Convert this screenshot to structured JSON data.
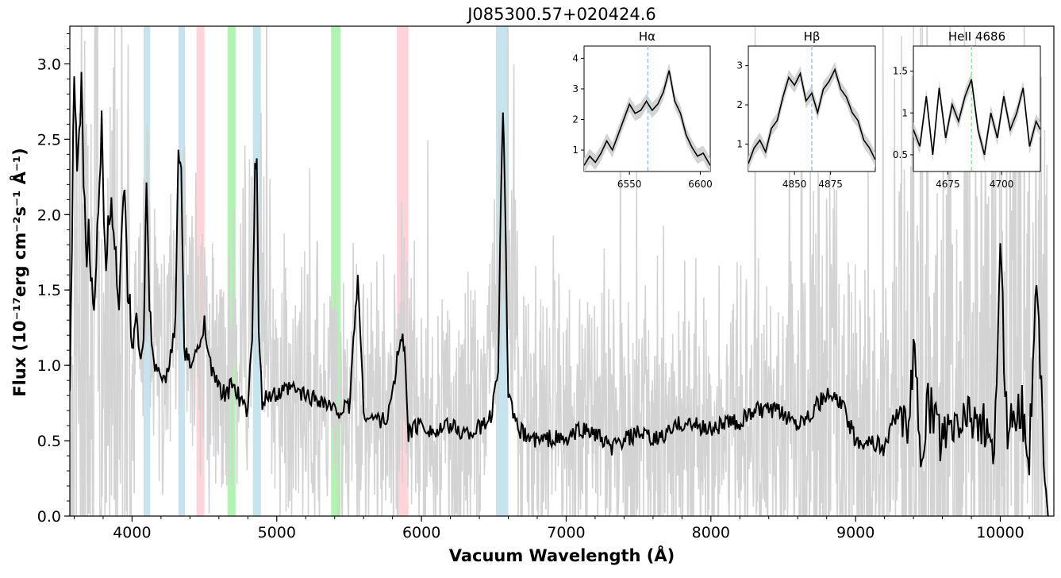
{
  "chart_data": [
    {
      "type": "line",
      "title": "J085300.57+020424.6",
      "xlabel": "Vacuum Wavelength (Å)",
      "ylabel": "Flux (10⁻¹⁷erg cm⁻²s⁻¹ Å⁻¹)",
      "xlim": [
        3570,
        10370
      ],
      "ylim": [
        0.0,
        3.25
      ],
      "x_ticks": [
        4000,
        5000,
        6000,
        7000,
        8000,
        9000,
        10000
      ],
      "y_ticks": [
        0.0,
        0.5,
        1.0,
        1.5,
        2.0,
        2.5,
        3.0
      ],
      "series": [
        {
          "role": "raw spectrum",
          "color": "#d3d3d3",
          "x": [
            3570,
            3700,
            3850,
            4000,
            4100,
            4200,
            4340,
            4500,
            4700,
            4862,
            5000,
            5200,
            5400,
            5600,
            5800,
            5890,
            6000,
            6200,
            6400,
            6563,
            6700,
            7000,
            7300,
            7600,
            8000,
            8300,
            8600,
            8900,
            9200,
            9400,
            9700,
            10000,
            10300
          ],
          "values": [
            0.6,
            1.6,
            1.2,
            1.1,
            1.6,
            0.9,
            1.8,
            1.0,
            0.85,
            1.8,
            0.8,
            0.8,
            0.75,
            0.7,
            0.75,
            1.0,
            0.6,
            0.55,
            0.55,
            2.0,
            0.6,
            0.55,
            0.55,
            0.6,
            0.6,
            0.6,
            0.7,
            0.7,
            0.55,
            0.9,
            0.7,
            0.9,
            0.8
          ]
        },
        {
          "role": "smoothed spectrum",
          "color": "#000000",
          "x": [
            3570,
            3600,
            3620,
            3650,
            3680,
            3700,
            3730,
            3760,
            3790,
            3820,
            3850,
            3880,
            3910,
            3940,
            3970,
            4000,
            4030,
            4060,
            4080,
            4100,
            4120,
            4150,
            4200,
            4250,
            4300,
            4320,
            4340,
            4360,
            4400,
            4460,
            4500,
            4550,
            4600,
            4650,
            4700,
            4750,
            4800,
            4830,
            4850,
            4862,
            4875,
            4900,
            4950,
            5000,
            5100,
            5200,
            5300,
            5400,
            5500,
            5560,
            5600,
            5650,
            5700,
            5750,
            5800,
            5840,
            5870,
            5890,
            5910,
            5940,
            6000,
            6100,
            6200,
            6300,
            6400,
            6480,
            6530,
            6550,
            6563,
            6575,
            6600,
            6650,
            6700,
            6800,
            6900,
            7000,
            7100,
            7200,
            7300,
            7400,
            7500,
            7600,
            7700,
            7800,
            7900,
            8000,
            8100,
            8200,
            8300,
            8400,
            8500,
            8600,
            8700,
            8800,
            8900,
            9000,
            9100,
            9200,
            9250,
            9300,
            9350,
            9400,
            9450,
            9500,
            9600,
            9700,
            9800,
            9900,
            9950,
            10000,
            10050,
            10100,
            10150,
            10200,
            10250,
            10300,
            10330
          ],
          "values": [
            0.7,
            3.0,
            2.4,
            2.9,
            1.7,
            2.0,
            1.3,
            1.8,
            2.6,
            1.6,
            2.1,
            1.9,
            1.2,
            2.2,
            1.5,
            1.1,
            1.3,
            1.0,
            1.2,
            2.2,
            1.4,
            1.0,
            0.9,
            0.95,
            1.3,
            2.4,
            2.3,
            1.1,
            1.0,
            1.1,
            1.3,
            0.95,
            0.85,
            0.8,
            0.9,
            0.75,
            0.7,
            1.2,
            2.3,
            2.35,
            1.2,
            0.75,
            0.8,
            0.8,
            0.85,
            0.8,
            0.78,
            0.7,
            0.72,
            1.6,
            0.7,
            0.65,
            0.65,
            0.62,
            0.8,
            1.1,
            1.2,
            1.0,
            0.55,
            0.58,
            0.62,
            0.55,
            0.6,
            0.55,
            0.58,
            0.65,
            1.0,
            2.2,
            2.7,
            2.2,
            0.8,
            0.6,
            0.55,
            0.5,
            0.52,
            0.5,
            0.58,
            0.55,
            0.45,
            0.5,
            0.55,
            0.5,
            0.55,
            0.62,
            0.6,
            0.58,
            0.62,
            0.62,
            0.7,
            0.7,
            0.68,
            0.62,
            0.7,
            0.8,
            0.75,
            0.5,
            0.5,
            0.45,
            0.6,
            0.72,
            0.5,
            1.1,
            0.4,
            0.75,
            0.5,
            0.6,
            0.7,
            0.55,
            0.3,
            1.7,
            0.55,
            0.75,
            0.7,
            0.45,
            1.5,
            0.5,
            0.0
          ]
        }
      ],
      "shaded_bands": [
        {
          "x": [
            4080,
            4125
          ],
          "color": "#add8e6"
        },
        {
          "x": [
            4320,
            4365
          ],
          "color": "#add8e6"
        },
        {
          "x": [
            4445,
            4500
          ],
          "color": "#ffc0cb"
        },
        {
          "x": [
            4660,
            4715
          ],
          "color": "#90ee90"
        },
        {
          "x": [
            4835,
            4890
          ],
          "color": "#add8e6"
        },
        {
          "x": [
            5375,
            5440
          ],
          "color": "#90ee90"
        },
        {
          "x": [
            5830,
            5910
          ],
          "color": "#ffc0cb"
        },
        {
          "x": [
            6515,
            6600
          ],
          "color": "#add8e6"
        }
      ],
      "grid": false
    },
    {
      "type": "line",
      "title": "Hα",
      "xlim": [
        6518,
        6607
      ],
      "ylim": [
        0.3,
        4.4
      ],
      "x_ticks": [
        6550,
        6600
      ],
      "y_ticks": [
        1,
        2,
        3,
        4
      ],
      "marker_line": {
        "x": 6563,
        "color": "#87ceeb"
      },
      "x": [
        6518,
        6522,
        6526,
        6530,
        6534,
        6538,
        6542,
        6546,
        6550,
        6554,
        6558,
        6562,
        6566,
        6570,
        6574,
        6578,
        6582,
        6586,
        6590,
        6594,
        6598,
        6602,
        6607
      ],
      "values": [
        0.5,
        0.8,
        0.6,
        0.9,
        1.3,
        1.0,
        1.5,
        2.0,
        2.5,
        2.2,
        2.3,
        2.6,
        2.3,
        2.5,
        2.9,
        3.6,
        2.6,
        2.2,
        1.5,
        1.1,
        0.8,
        0.9,
        0.5
      ]
    },
    {
      "type": "line",
      "title": "Hβ",
      "xlim": [
        4818,
        4906
      ],
      "ylim": [
        0.3,
        3.5
      ],
      "x_ticks": [
        4850,
        4875
      ],
      "y_ticks": [
        1,
        2,
        3
      ],
      "marker_line": {
        "x": 4862,
        "color": "#87ceeb"
      },
      "x": [
        4818,
        4822,
        4826,
        4830,
        4834,
        4838,
        4842,
        4846,
        4850,
        4854,
        4858,
        4862,
        4866,
        4870,
        4874,
        4878,
        4882,
        4886,
        4890,
        4894,
        4898,
        4902,
        4906
      ],
      "values": [
        0.5,
        0.9,
        1.1,
        0.8,
        1.4,
        1.6,
        2.2,
        2.7,
        2.5,
        2.8,
        2.1,
        2.3,
        1.8,
        2.4,
        2.6,
        2.9,
        2.4,
        2.2,
        1.8,
        1.6,
        1.1,
        0.9,
        0.6
      ]
    },
    {
      "type": "line",
      "title": "HeII 4686",
      "xlim": [
        4659,
        4718
      ],
      "ylim": [
        0.3,
        1.8
      ],
      "x_ticks": [
        4675,
        4700
      ],
      "y_ticks": [
        0.5,
        1.0,
        1.5
      ],
      "marker_line": {
        "x": 4686,
        "color": "#90ee90"
      },
      "x": [
        4659,
        4662,
        4665,
        4668,
        4671,
        4674,
        4677,
        4680,
        4683,
        4686,
        4689,
        4692,
        4695,
        4698,
        4701,
        4704,
        4707,
        4710,
        4713,
        4716,
        4718
      ],
      "values": [
        0.8,
        0.6,
        1.2,
        0.5,
        1.3,
        0.7,
        1.1,
        0.9,
        1.2,
        1.4,
        0.8,
        0.5,
        1.0,
        0.7,
        1.2,
        0.8,
        1.0,
        1.3,
        0.6,
        0.9,
        0.8
      ]
    }
  ]
}
